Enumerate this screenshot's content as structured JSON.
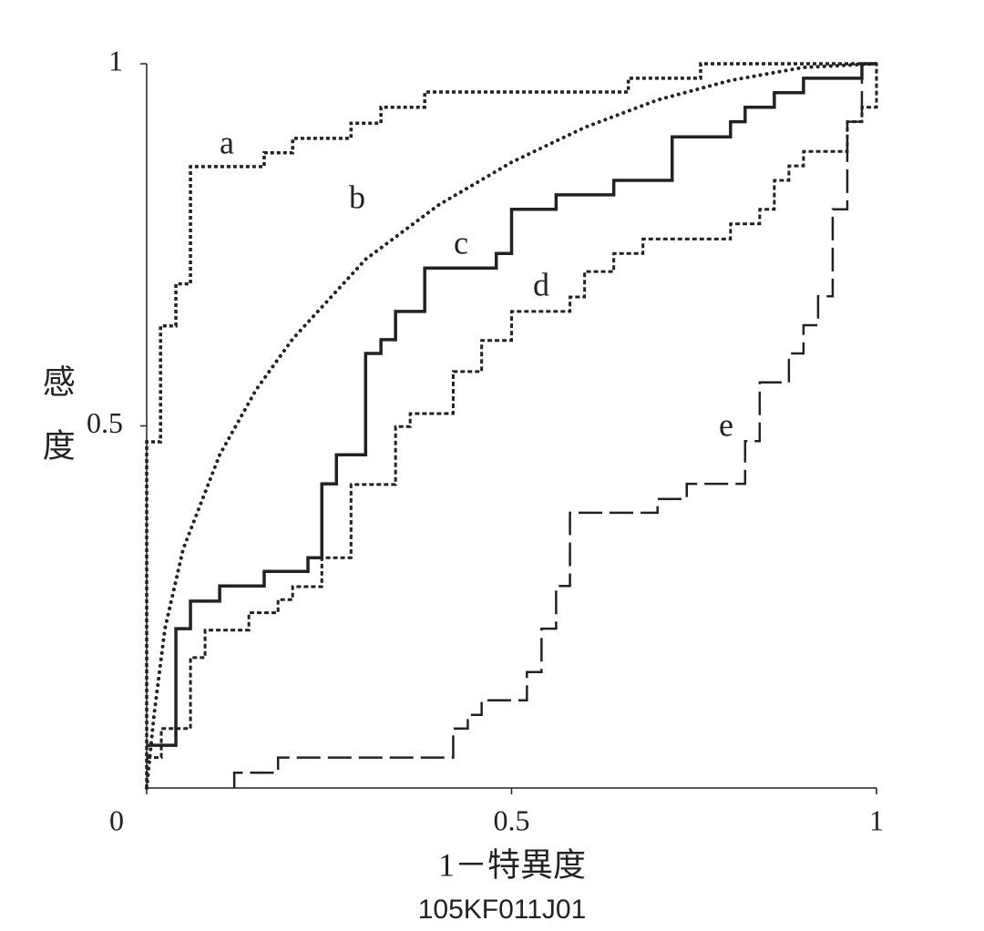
{
  "chart_data": {
    "type": "line",
    "x_label": "1－特異度",
    "y_label": "感度",
    "subtitle": "105KF011J01",
    "xlim": [
      0,
      1
    ],
    "ylim": [
      0,
      1
    ],
    "xticks": [
      0,
      0.5,
      1
    ],
    "yticks": [
      0.5,
      1
    ],
    "series": [
      {
        "name": "a",
        "color": "#222222",
        "dash": "short-dash",
        "x": [
          0,
          0,
          0.019,
          0.019,
          0.04,
          0.04,
          0.06,
          0.06,
          0.161,
          0.161,
          0.2,
          0.2,
          0.28,
          0.28,
          0.321,
          0.321,
          0.381,
          0.381,
          0.66,
          0.66,
          0.759,
          0.759,
          1
        ],
        "values": [
          0,
          0.478,
          0.478,
          0.638,
          0.638,
          0.696,
          0.696,
          0.858,
          0.858,
          0.877,
          0.877,
          0.897,
          0.897,
          0.918,
          0.918,
          0.94,
          0.94,
          0.961,
          0.961,
          0.98,
          0.98,
          1,
          1
        ]
      },
      {
        "name": "b",
        "color": "#222222",
        "dash": "dotted",
        "x": [
          0,
          0.01,
          0.025,
          0.05,
          0.1,
          0.15,
          0.2,
          0.3,
          0.4,
          0.5,
          0.6,
          0.7,
          0.8,
          0.9,
          1
        ],
        "values": [
          0,
          0.1,
          0.22,
          0.33,
          0.46,
          0.55,
          0.62,
          0.73,
          0.805,
          0.864,
          0.912,
          0.95,
          0.977,
          0.995,
          1
        ]
      },
      {
        "name": "c",
        "color": "#222222",
        "dash": "solid",
        "x": [
          0,
          0.04,
          0.04,
          0.06,
          0.06,
          0.1,
          0.1,
          0.161,
          0.161,
          0.221,
          0.221,
          0.24,
          0.24,
          0.26,
          0.26,
          0.3,
          0.3,
          0.321,
          0.321,
          0.341,
          0.341,
          0.381,
          0.381,
          0.479,
          0.479,
          0.5,
          0.5,
          0.561,
          0.561,
          0.64,
          0.64,
          0.72,
          0.72,
          0.8,
          0.8,
          0.82,
          0.82,
          0.86,
          0.86,
          0.9,
          0.9,
          0.98,
          0.98,
          1
        ],
        "values": [
          0.059,
          0.059,
          0.22,
          0.22,
          0.258,
          0.258,
          0.279,
          0.279,
          0.299,
          0.299,
          0.318,
          0.318,
          0.42,
          0.42,
          0.46,
          0.46,
          0.6,
          0.6,
          0.619,
          0.619,
          0.658,
          0.658,
          0.718,
          0.718,
          0.738,
          0.738,
          0.799,
          0.799,
          0.819,
          0.819,
          0.839,
          0.839,
          0.899,
          0.899,
          0.92,
          0.92,
          0.94,
          0.94,
          0.96,
          0.96,
          0.98,
          0.98,
          1,
          1
        ]
      },
      {
        "name": "d",
        "color": "#222222",
        "dash": "dash",
        "x": [
          0,
          0.02,
          0.02,
          0.06,
          0.06,
          0.08,
          0.08,
          0.14,
          0.14,
          0.18,
          0.18,
          0.2,
          0.2,
          0.24,
          0.24,
          0.28,
          0.28,
          0.341,
          0.341,
          0.361,
          0.361,
          0.42,
          0.42,
          0.459,
          0.459,
          0.5,
          0.5,
          0.58,
          0.58,
          0.6,
          0.6,
          0.64,
          0.64,
          0.68,
          0.68,
          0.8,
          0.8,
          0.84,
          0.84,
          0.86,
          0.86,
          0.88,
          0.88,
          0.9,
          0.9,
          0.96,
          0.96,
          0.98,
          0.98,
          1,
          1
        ],
        "values": [
          0.042,
          0.042,
          0.082,
          0.082,
          0.18,
          0.18,
          0.218,
          0.218,
          0.242,
          0.242,
          0.26,
          0.26,
          0.278,
          0.278,
          0.318,
          0.318,
          0.419,
          0.419,
          0.499,
          0.499,
          0.517,
          0.517,
          0.575,
          0.575,
          0.618,
          0.618,
          0.658,
          0.658,
          0.678,
          0.678,
          0.713,
          0.713,
          0.738,
          0.738,
          0.758,
          0.758,
          0.779,
          0.779,
          0.799,
          0.799,
          0.839,
          0.839,
          0.859,
          0.859,
          0.879,
          0.879,
          0.92,
          0.92,
          0.94,
          0.94,
          1
        ]
      },
      {
        "name": "e",
        "color": "#222222",
        "dash": "long-dash",
        "x": [
          0.12,
          0.12,
          0.18,
          0.18,
          0.42,
          0.42,
          0.44,
          0.44,
          0.459,
          0.459,
          0.521,
          0.521,
          0.541,
          0.541,
          0.561,
          0.561,
          0.58,
          0.58,
          0.7,
          0.7,
          0.74,
          0.74,
          0.82,
          0.82,
          0.84,
          0.84,
          0.88,
          0.88,
          0.9,
          0.9,
          0.92,
          0.92,
          0.94,
          0.94,
          0.96,
          0.96,
          0.98,
          0.98,
          1
        ],
        "values": [
          0,
          0.021,
          0.021,
          0.042,
          0.042,
          0.082,
          0.082,
          0.101,
          0.101,
          0.121,
          0.121,
          0.16,
          0.16,
          0.22,
          0.22,
          0.279,
          0.279,
          0.38,
          0.38,
          0.399,
          0.399,
          0.42,
          0.42,
          0.479,
          0.479,
          0.56,
          0.56,
          0.6,
          0.6,
          0.639,
          0.639,
          0.679,
          0.679,
          0.799,
          0.799,
          0.92,
          0.92,
          1,
          1
        ]
      }
    ]
  }
}
